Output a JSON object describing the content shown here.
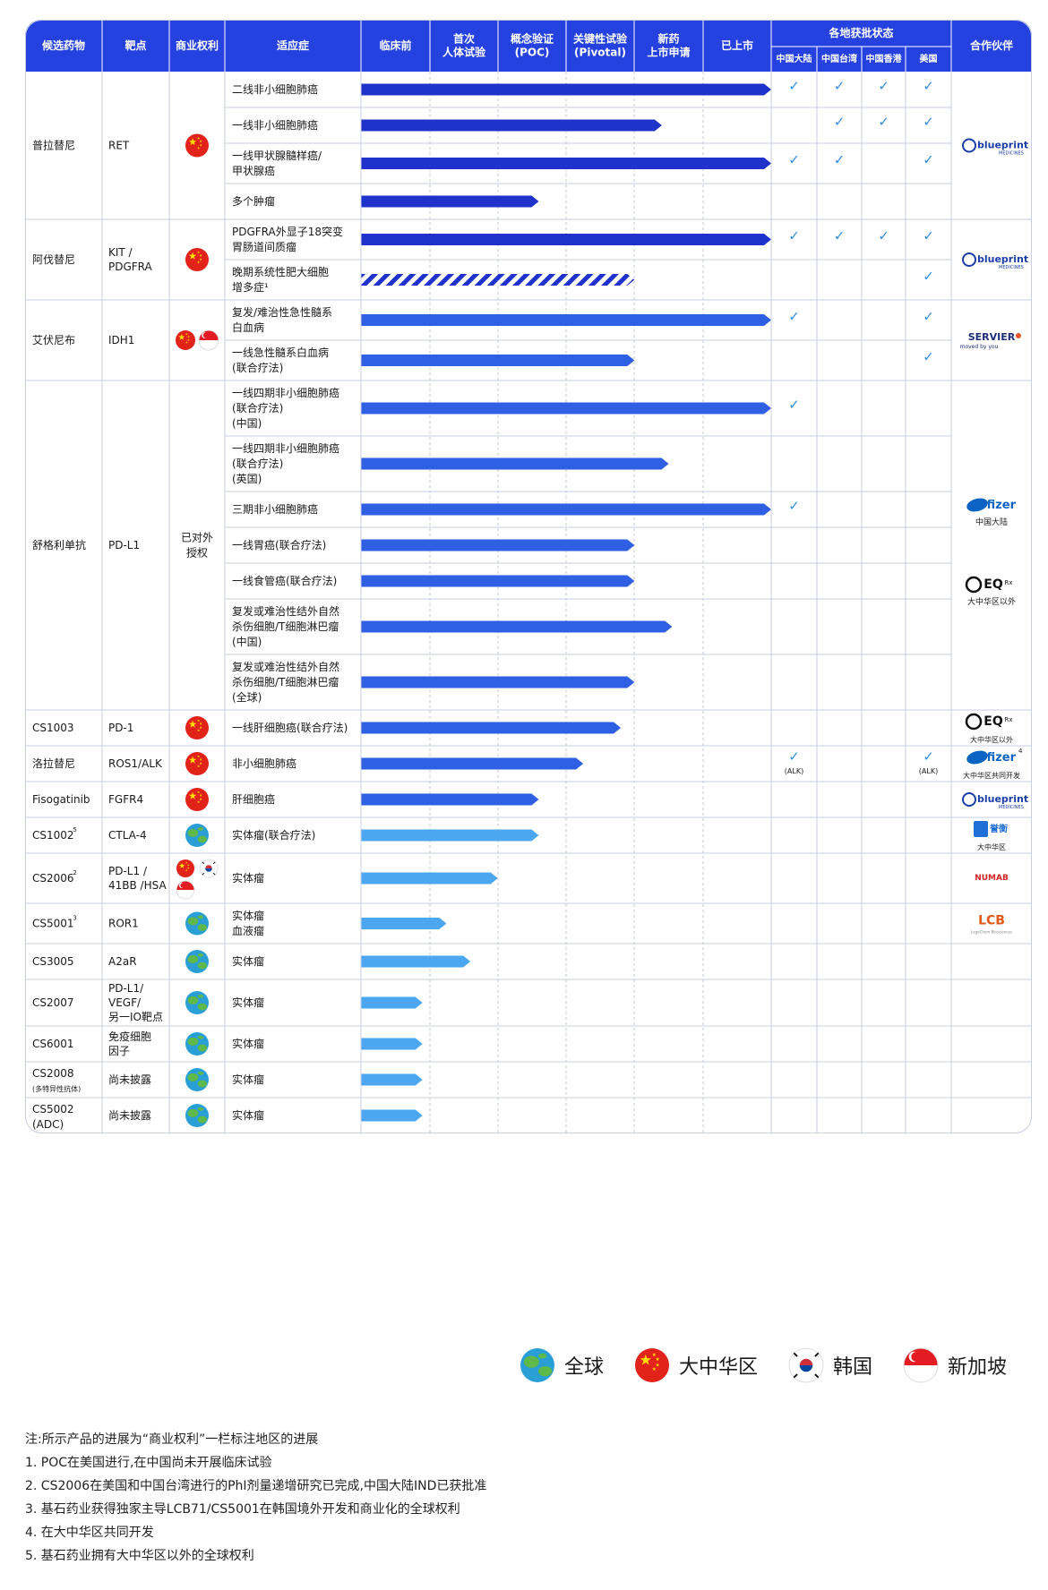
{
  "colors": {
    "header_bg": "#2542e0",
    "header_text": "#ffffff",
    "bar_dark": "#1f33cc",
    "bar_mid": "#2f5fe3",
    "bar_light": "#4aa7f0",
    "check": "#2f8fe6",
    "grid": "#c9cde0"
  },
  "header": {
    "columns": [
      "候选药物",
      "靶点",
      "商业权利",
      "适应症"
    ],
    "phases": [
      "临床前",
      "首次\n人体试验",
      "概念验证\n(POC)",
      "关键性试验\n(Pivotal)",
      "新药\n上市申请",
      "已上市"
    ],
    "approval_group": "各地获批状态",
    "regions": [
      "中国大陆",
      "中国台湾",
      "中国香港",
      "美国"
    ],
    "partner": "合作伙伴"
  },
  "chart_data": {
    "type": "gantt",
    "phase_scale": "0=临床前起点, 6=已上市终点",
    "drugs": [
      {
        "name": "普拉替尼",
        "sup": "",
        "name2": "",
        "target": "RET",
        "rights": [
          "cn"
        ],
        "rights_text": "",
        "partners": [
          {
            "logo": "blueprint",
            "label": ""
          }
        ],
        "indications": [
          {
            "text": "二线非小细胞肺癌",
            "progress": 6.0,
            "style": "dark",
            "approvals": [
              "✓",
              "✓",
              "✓",
              "✓"
            ]
          },
          {
            "text": "一线非小细胞肺癌",
            "progress": 4.4,
            "style": "dark",
            "approvals": [
              "",
              "✓",
              "✓",
              "✓"
            ]
          },
          {
            "text": "一线甲状腺髓样癌/\n甲状腺癌",
            "progress": 6.0,
            "style": "dark",
            "approvals": [
              "✓",
              "✓",
              "",
              "✓"
            ]
          },
          {
            "text": "多个肿瘤",
            "progress": 2.6,
            "style": "dark",
            "approvals": [
              "",
              "",
              "",
              ""
            ]
          }
        ]
      },
      {
        "name": "阿伐替尼",
        "sup": "",
        "name2": "",
        "target": "KIT /\nPDGFRA",
        "rights": [
          "cn"
        ],
        "rights_text": "",
        "partners": [
          {
            "logo": "blueprint",
            "label": ""
          }
        ],
        "indications": [
          {
            "text": "PDGFRA外显子18突变\n胃肠道间质瘤",
            "progress": 6.0,
            "style": "dark",
            "approvals": [
              "✓",
              "✓",
              "✓",
              "✓"
            ]
          },
          {
            "text": "晚期系统性肥大细胞\n增多症¹",
            "progress": 4.0,
            "style": "hatched",
            "approvals": [
              "",
              "",
              "",
              "✓"
            ]
          }
        ]
      },
      {
        "name": "艾伏尼布",
        "sup": "",
        "name2": "",
        "target": "IDH1",
        "rights": [
          "cn",
          "sg"
        ],
        "rights_text": "",
        "partners": [
          {
            "logo": "servier",
            "label": ""
          }
        ],
        "indications": [
          {
            "text": "复发/难治性急性髓系\n白血病",
            "progress": 6.0,
            "style": "mid",
            "approvals": [
              "✓",
              "",
              "",
              "✓"
            ]
          },
          {
            "text": "一线急性髓系白血病\n(联合疗法)",
            "progress": 4.0,
            "style": "mid",
            "approvals": [
              "",
              "",
              "",
              "✓"
            ]
          }
        ]
      },
      {
        "name": "舒格利单抗",
        "sup": "",
        "name2": "",
        "target": "PD-L1",
        "rights": [],
        "rights_text": "已对外\n授权",
        "partners": [
          {
            "logo": "pfizer",
            "label": "中国大陆"
          },
          {
            "logo": "eq",
            "label": "大中华区以外"
          }
        ],
        "indications": [
          {
            "text": "一线四期非小细胞肺癌\n(联合疗法)\n(中国)",
            "progress": 6.0,
            "style": "mid",
            "approvals": [
              "✓",
              "",
              "",
              ""
            ]
          },
          {
            "text": "一线四期非小细胞肺癌\n(联合疗法)\n(英国)",
            "progress": 4.5,
            "style": "mid",
            "approvals": [
              "",
              "",
              "",
              ""
            ]
          },
          {
            "text": "三期非小细胞肺癌",
            "progress": 6.0,
            "style": "mid",
            "approvals": [
              "✓",
              "",
              "",
              ""
            ]
          },
          {
            "text": "一线胃癌(联合疗法)",
            "progress": 4.0,
            "style": "mid",
            "approvals": [
              "",
              "",
              "",
              ""
            ]
          },
          {
            "text": "一线食管癌(联合疗法)",
            "progress": 4.0,
            "style": "mid",
            "approvals": [
              "",
              "",
              "",
              ""
            ]
          },
          {
            "text": "复发或难治性结外自然\n杀伤细胞/T细胞淋巴瘤\n(中国)",
            "progress": 4.55,
            "style": "mid",
            "approvals": [
              "",
              "",
              "",
              ""
            ]
          },
          {
            "text": "复发或难治性结外自然\n杀伤细胞/T细胞淋巴瘤\n(全球)",
            "progress": 4.0,
            "style": "mid",
            "approvals": [
              "",
              "",
              "",
              ""
            ]
          }
        ]
      },
      {
        "name": "CS1003",
        "sup": "",
        "name2": "",
        "target": "PD-1",
        "rights": [
          "cn"
        ],
        "rights_text": "",
        "partners": [
          {
            "logo": "eq",
            "label": "大中华区以外"
          }
        ],
        "indications": [
          {
            "text": "一线肝细胞癌(联合疗法)",
            "progress": 3.8,
            "style": "mid",
            "approvals": [
              "",
              "",
              "",
              ""
            ]
          }
        ]
      },
      {
        "name": "洛拉替尼",
        "sup": "",
        "name2": "",
        "target": "ROS1/ALK",
        "rights": [
          "cn"
        ],
        "rights_text": "",
        "partners": [
          {
            "logo": "pfizer",
            "sup": "4",
            "label": "大中华区共同开发"
          }
        ],
        "indications": [
          {
            "text": "非小细胞肺癌",
            "progress": 3.25,
            "style": "mid",
            "approvals": [
              "✓\n(ALK)",
              "",
              "",
              "✓\n(ALK)"
            ]
          }
        ]
      },
      {
        "name": "Fisogatinib",
        "sup": "",
        "name2": "",
        "target": "FGFR4",
        "rights": [
          "cn"
        ],
        "rights_text": "",
        "partners": [
          {
            "logo": "blueprint",
            "label": ""
          }
        ],
        "indications": [
          {
            "text": "肝细胞癌",
            "progress": 2.6,
            "style": "mid",
            "approvals": [
              "",
              "",
              "",
              ""
            ]
          }
        ]
      },
      {
        "name": "CS1002",
        "sup": "5",
        "name2": "",
        "target": "CTLA-4",
        "rights": [
          "globe"
        ],
        "rights_text": "",
        "partners": [
          {
            "logo": "yuxi",
            "label": "大中华区"
          }
        ],
        "indications": [
          {
            "text": "实体瘤(联合疗法)",
            "progress": 2.6,
            "style": "light",
            "approvals": [
              "",
              "",
              "",
              ""
            ]
          }
        ]
      },
      {
        "name": "CS2006",
        "sup": "2",
        "name2": "",
        "target": "PD-L1 /\n41BB /HSA",
        "rights": [
          "cn",
          "kr",
          "sg"
        ],
        "rights_text": "",
        "partners": [
          {
            "logo": "numab",
            "label": ""
          }
        ],
        "indications": [
          {
            "text": "实体瘤",
            "progress": 2.0,
            "style": "light",
            "approvals": [
              "",
              "",
              "",
              ""
            ]
          }
        ]
      },
      {
        "name": "CS5001",
        "sup": "3",
        "name2": "",
        "target": "ROR1",
        "rights": [
          "globe"
        ],
        "rights_text": "",
        "partners": [
          {
            "logo": "lcb",
            "label": ""
          }
        ],
        "indications": [
          {
            "text": "实体瘤\n血液瘤",
            "progress": 1.25,
            "style": "light",
            "approvals": [
              "",
              "",
              "",
              ""
            ]
          }
        ]
      },
      {
        "name": "CS3005",
        "sup": "",
        "name2": "",
        "target": "A2aR",
        "rights": [
          "globe"
        ],
        "rights_text": "",
        "partners": [],
        "indications": [
          {
            "text": "实体瘤",
            "progress": 1.6,
            "style": "light",
            "approvals": [
              "",
              "",
              "",
              ""
            ]
          }
        ]
      },
      {
        "name": "CS2007",
        "sup": "",
        "name2": "",
        "target": "PD-L1/\nVEGF/\n另一IO靶点",
        "rights": [
          "globe"
        ],
        "rights_text": "",
        "partners": [],
        "indications": [
          {
            "text": "实体瘤",
            "progress": 0.9,
            "style": "light",
            "approvals": [
              "",
              "",
              "",
              ""
            ]
          }
        ]
      },
      {
        "name": "CS6001",
        "sup": "",
        "name2": "",
        "target": "免疫细胞\n因子",
        "rights": [
          "globe"
        ],
        "rights_text": "",
        "partners": [],
        "indications": [
          {
            "text": "实体瘤",
            "progress": 0.9,
            "style": "light",
            "approvals": [
              "",
              "",
              "",
              ""
            ]
          }
        ]
      },
      {
        "name": "CS2008",
        "sup": "",
        "name2": "(多特异性抗体)",
        "target": "尚未披露",
        "rights": [
          "globe"
        ],
        "rights_text": "",
        "partners": [],
        "indications": [
          {
            "text": "实体瘤",
            "progress": 0.9,
            "style": "light",
            "approvals": [
              "",
              "",
              "",
              ""
            ]
          }
        ]
      },
      {
        "name": "CS5002",
        "sup": "",
        "name2": "(ADC)",
        "target": "尚未披露",
        "rights": [
          "globe"
        ],
        "rights_text": "",
        "partners": [],
        "indications": [
          {
            "text": "实体瘤",
            "progress": 0.9,
            "style": "light",
            "approvals": [
              "",
              "",
              "",
              ""
            ]
          }
        ]
      }
    ]
  },
  "logos": {
    "blueprint": "blueprint",
    "blueprint_sub": "MEDICINES",
    "servier": "SERVIER",
    "servier_sub": "moved by you",
    "pfizer": "Pfizer",
    "eq": "EQ",
    "eq_rx": "Rx",
    "yuxi": "誉衡",
    "numab": "NUMAB",
    "lcb": "LCB",
    "lcb_sub": "LegoChem Biosciences"
  },
  "legend": [
    {
      "icon": "globe",
      "label": "全球"
    },
    {
      "icon": "cn",
      "label": "大中华区"
    },
    {
      "icon": "kr",
      "label": "韩国"
    },
    {
      "icon": "sg",
      "label": "新加坡"
    }
  ],
  "notes": [
    "注:所示产品的进展为“商业权利”一栏标注地区的进展",
    "1. POC在美国进行,在中国尚未开展临床试验",
    "2. CS2006在美国和中国台湾进行的PhI剂量递增研究已完成,中国大陆IND已获批准",
    "3. 基石药业获得独家主导LCB71/CS5001在韩国境外开发和商业化的全球权利",
    "4. 在大中华区共同开发",
    "5. 基石药业拥有大中华区以外的全球权利"
  ]
}
